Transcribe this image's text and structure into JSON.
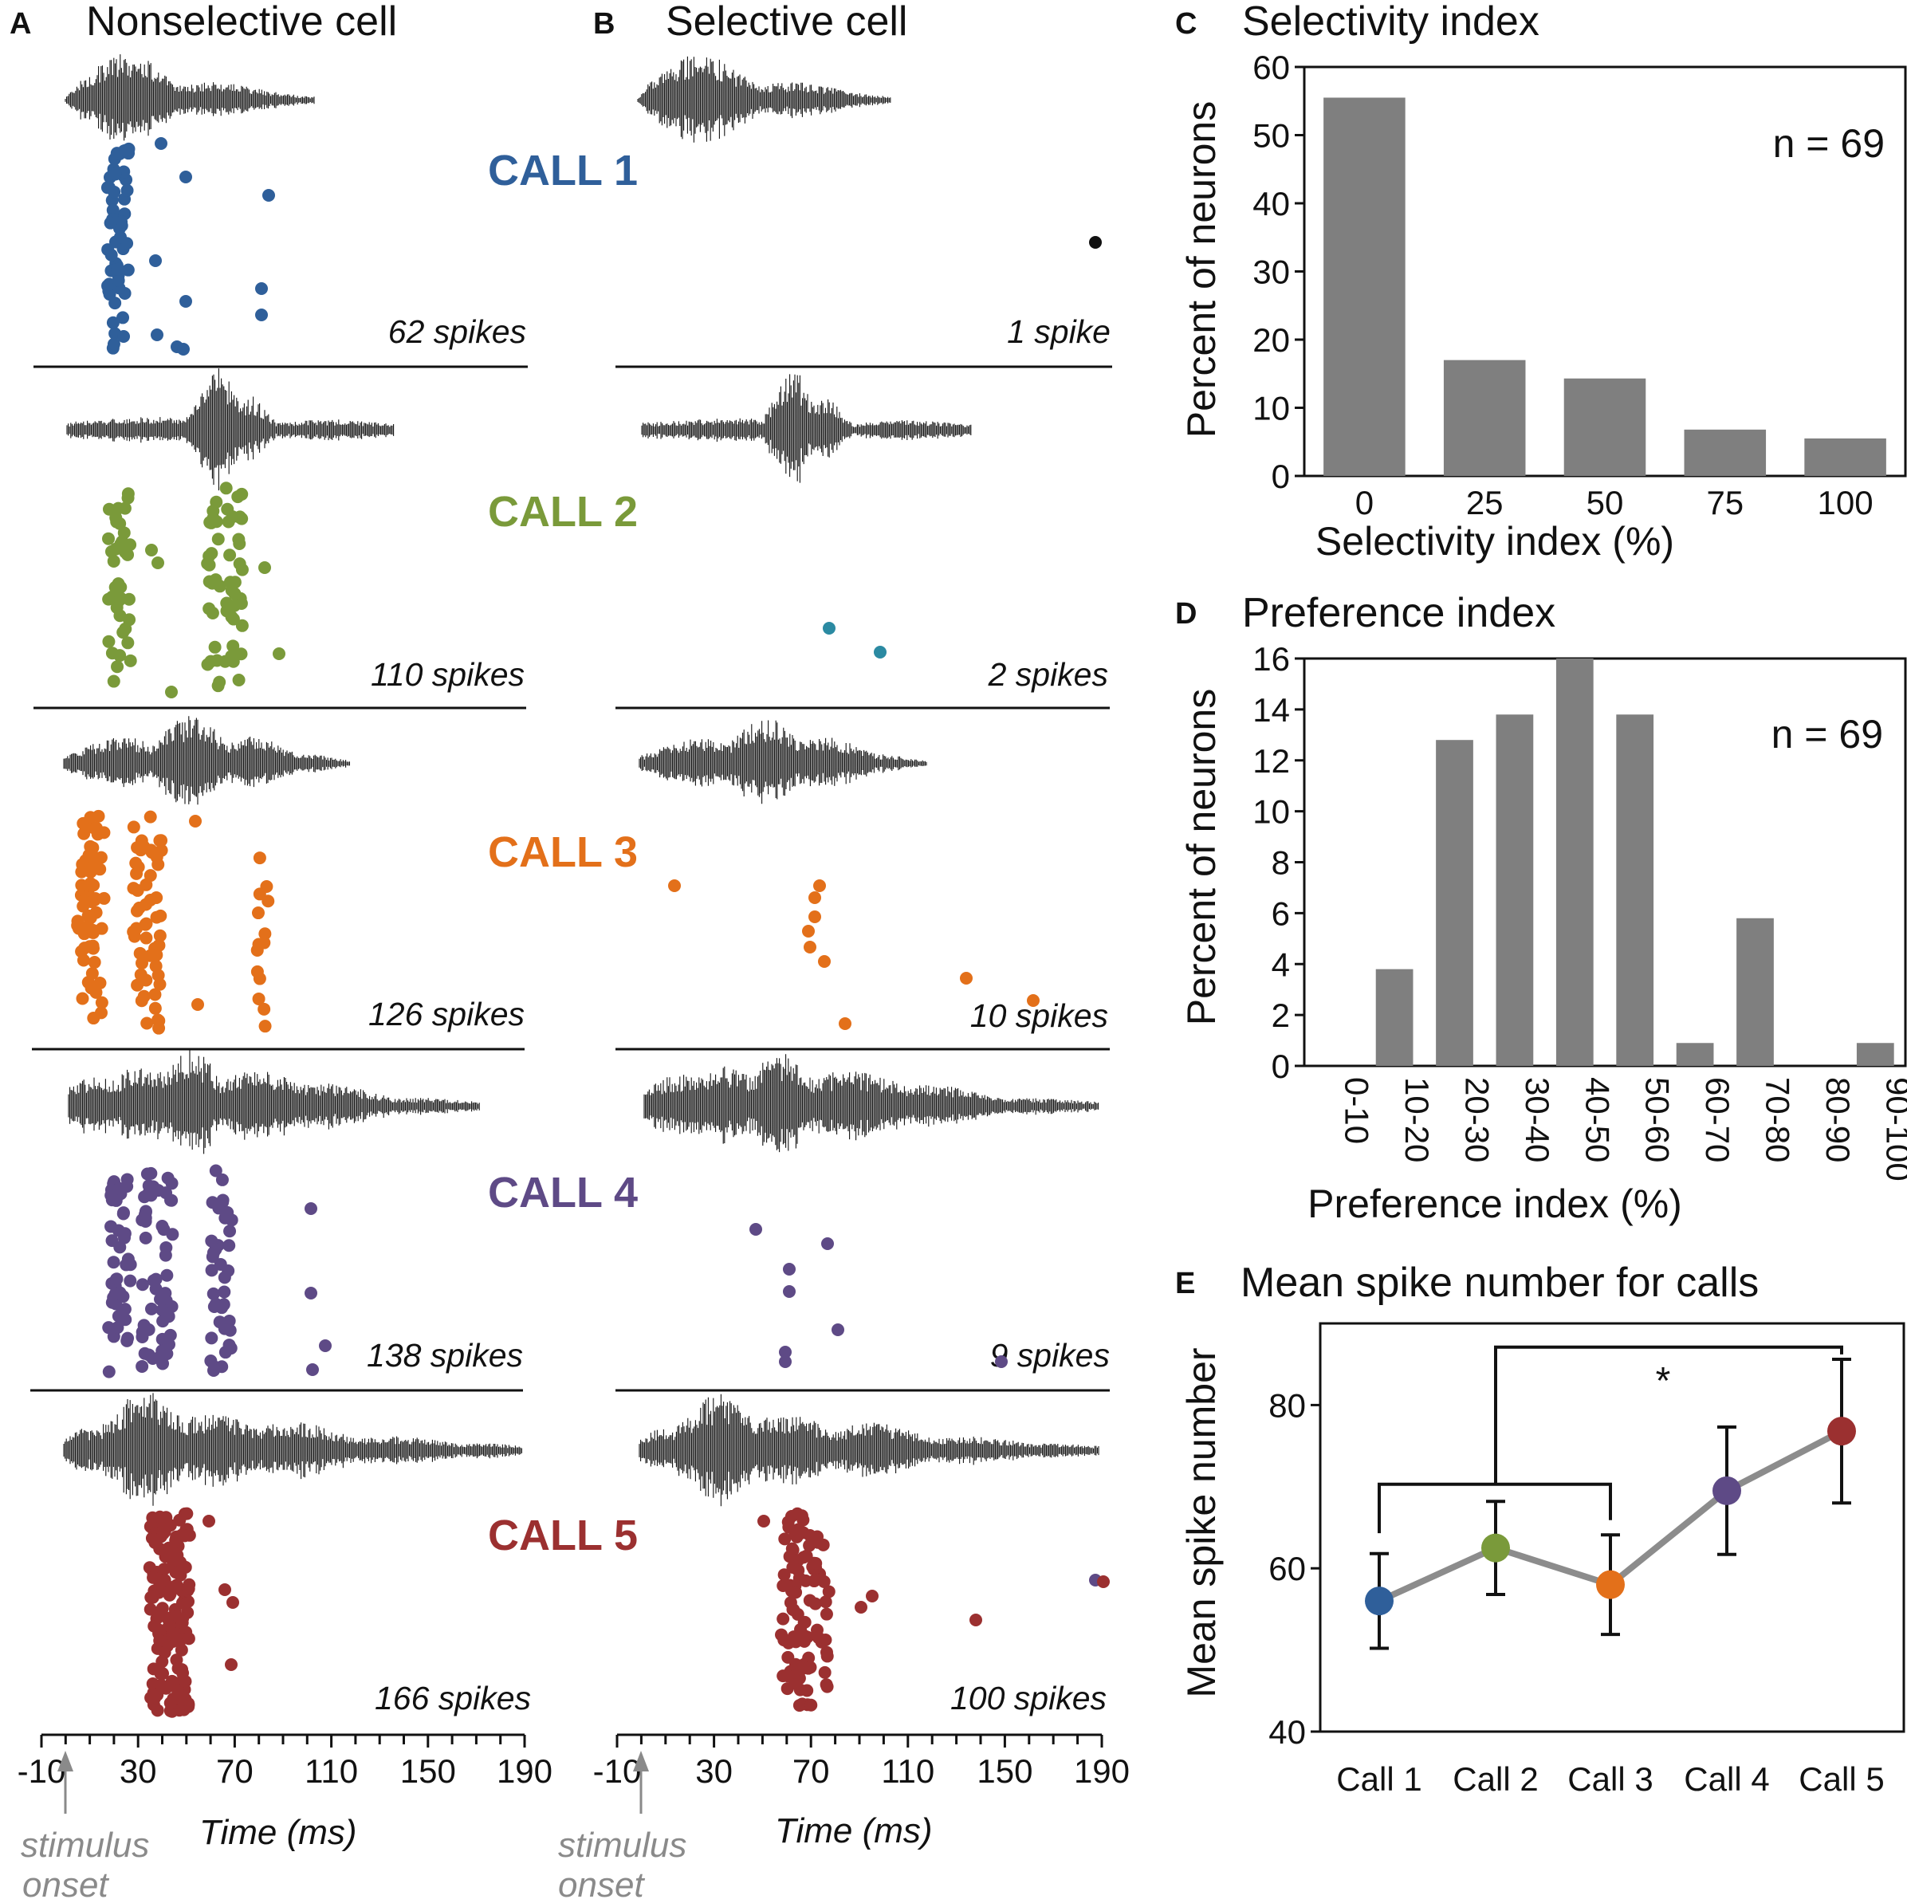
{
  "colors": {
    "call1": "#2f5f9a",
    "call2": "#7a9a3a",
    "call3": "#e3701a",
    "call4": "#5e4a86",
    "call5": "#9b3030",
    "teal": "#2b8aa2",
    "black": "#111111",
    "bar": "#7f7f7f",
    "line": "#8c8c8c",
    "onset": "#8a8a8a"
  },
  "panels": {
    "A": {
      "letter": "A",
      "title": "Nonselective cell"
    },
    "B": {
      "letter": "B",
      "title": "Selective cell"
    },
    "C": {
      "letter": "C",
      "title": "Selectivity index"
    },
    "D": {
      "letter": "D",
      "title": "Preference index"
    },
    "E": {
      "letter": "E",
      "title": "Mean spike number for calls"
    }
  },
  "calls": [
    {
      "label": "CALL 1",
      "spikes_a": "62 spikes",
      "spikes_b": "1 spike"
    },
    {
      "label": "CALL 2",
      "spikes_a": "110 spikes",
      "spikes_b": "2 spikes"
    },
    {
      "label": "CALL 3",
      "spikes_a": "126 spikes",
      "spikes_b": "10 spikes"
    },
    {
      "label": "CALL 4",
      "spikes_a": "138 spikes",
      "spikes_b": "9 spikes"
    },
    {
      "label": "CALL 5",
      "spikes_a": "166 spikes",
      "spikes_b": "100 spikes"
    }
  ],
  "raster_axis": {
    "ticks": [
      "-10",
      "30",
      "70",
      "110",
      "150",
      "190"
    ],
    "time_label": "Time (ms)",
    "onset_line1": "stimulus",
    "onset_line2": "onset"
  },
  "chart_data": [
    {
      "type": "bar",
      "panel": "C",
      "title": "Selectivity index",
      "categories": [
        "0",
        "25",
        "50",
        "75",
        "100"
      ],
      "values": [
        55.5,
        17,
        14.3,
        6.8,
        5.5
      ],
      "xlabel": "Selectivity index (%)",
      "ylabel": "Percent of neurons",
      "ylim": [
        0,
        60
      ],
      "yticks": [
        "0",
        "10",
        "20",
        "30",
        "40",
        "50",
        "60"
      ],
      "annotation": "n = 69"
    },
    {
      "type": "bar",
      "panel": "D",
      "title": "Preference index",
      "categories": [
        "0-10",
        "10-20",
        "20-30",
        "30-40",
        "40-50",
        "50-60",
        "60-70",
        "70-80",
        "80-90",
        "90-100"
      ],
      "values": [
        0,
        3.8,
        12.8,
        13.8,
        16,
        13.8,
        0.9,
        5.8,
        0,
        0.9
      ],
      "xlabel": "Preference index (%)",
      "ylabel": "Percent of neurons",
      "ylim": [
        0,
        16
      ],
      "yticks": [
        "0",
        "2",
        "4",
        "6",
        "8",
        "10",
        "12",
        "14",
        "16"
      ],
      "annotation": "n = 69"
    },
    {
      "type": "line",
      "panel": "E",
      "title": "Mean spike number for calls",
      "categories": [
        "Call 1",
        "Call 2",
        "Call 3",
        "Call 4",
        "Call 5"
      ],
      "values": [
        56,
        62.5,
        58,
        69.5,
        76.8
      ],
      "errors": [
        5.8,
        5.7,
        6.1,
        7.8,
        8.8
      ],
      "ylabel": "Mean spike number",
      "ylim": [
        40,
        90
      ],
      "yticks": [
        "40",
        "60",
        "80"
      ],
      "significance": "*"
    }
  ]
}
